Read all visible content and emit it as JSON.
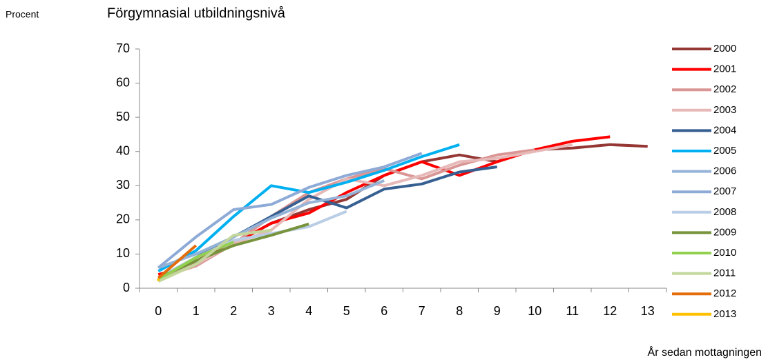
{
  "chart_data": {
    "type": "line",
    "title": "Förgymnasial utbildningsnivå",
    "y_label": "Procent",
    "x_label": "År sedan mottagningen",
    "categories": [
      "0",
      "1",
      "2",
      "3",
      "4",
      "5",
      "6",
      "7",
      "8",
      "9",
      "10",
      "11",
      "12",
      "13"
    ],
    "ylim": [
      0,
      70
    ],
    "yticks": [
      0,
      10,
      20,
      30,
      40,
      50,
      60,
      70
    ],
    "grid": false,
    "legend": "right",
    "series": [
      {
        "name": "2000",
        "color": "#953735",
        "values": [
          3,
          8,
          13,
          19,
          23,
          26,
          33,
          37,
          39,
          37,
          40.5,
          41,
          42,
          41.5
        ]
      },
      {
        "name": "2001",
        "color": "#ff0000",
        "values": [
          4,
          7,
          13,
          19,
          22,
          28,
          33,
          37,
          33,
          37,
          40.5,
          43,
          44.3,
          null
        ]
      },
      {
        "name": "2002",
        "color": "#d99694",
        "values": [
          3,
          6.5,
          13,
          21,
          28,
          32,
          35,
          32,
          36,
          39,
          40.5,
          null,
          null,
          null
        ]
      },
      {
        "name": "2003",
        "color": "#e6b9b8",
        "values": [
          3,
          7,
          13,
          17,
          26,
          32,
          30,
          33,
          37,
          38,
          40,
          42,
          null,
          null
        ]
      },
      {
        "name": "2004",
        "color": "#376092",
        "values": [
          3,
          9,
          15,
          21,
          27,
          23.5,
          29,
          30.5,
          34,
          35.5,
          null,
          null,
          null,
          null
        ]
      },
      {
        "name": "2005",
        "color": "#00b0f0",
        "values": [
          5,
          11,
          21,
          30,
          28,
          31,
          34.5,
          38.5,
          42,
          null,
          null,
          null,
          null,
          null
        ]
      },
      {
        "name": "2006",
        "color": "#95b3d7",
        "values": [
          6,
          10,
          15,
          20.5,
          25,
          27,
          31.5,
          null,
          null,
          null,
          null,
          null,
          null,
          null
        ]
      },
      {
        "name": "2007",
        "color": "#8eaad6",
        "values": [
          6,
          15,
          23,
          24.5,
          29.5,
          33,
          35.5,
          39.5,
          null,
          null,
          null,
          null,
          null,
          null
        ]
      },
      {
        "name": "2008",
        "color": "#b9cde5",
        "values": [
          3,
          9,
          14,
          16,
          18,
          22.5,
          null,
          null,
          null,
          null,
          null,
          null,
          null,
          null
        ]
      },
      {
        "name": "2009",
        "color": "#77933c",
        "values": [
          3,
          8,
          12.5,
          15.5,
          18.8,
          null,
          null,
          null,
          null,
          null,
          null,
          null,
          null,
          null
        ]
      },
      {
        "name": "2010",
        "color": "#92d050",
        "values": [
          2.5,
          9,
          13.5,
          null,
          null,
          null,
          null,
          null,
          null,
          null,
          null,
          null,
          null,
          null
        ]
      },
      {
        "name": "2011",
        "color": "#c3d69b",
        "values": [
          2,
          7,
          15.5,
          17,
          null,
          null,
          null,
          null,
          null,
          null,
          null,
          null,
          null,
          null
        ]
      },
      {
        "name": "2012",
        "color": "#e46c0a",
        "values": [
          3,
          12.5,
          null,
          null,
          null,
          null,
          null,
          null,
          null,
          null,
          null,
          null,
          null,
          null
        ]
      },
      {
        "name": "2013",
        "color": "#ffc000",
        "values": [
          2.5,
          null,
          null,
          null,
          null,
          null,
          null,
          null,
          null,
          null,
          null,
          null,
          null,
          null
        ]
      }
    ]
  }
}
